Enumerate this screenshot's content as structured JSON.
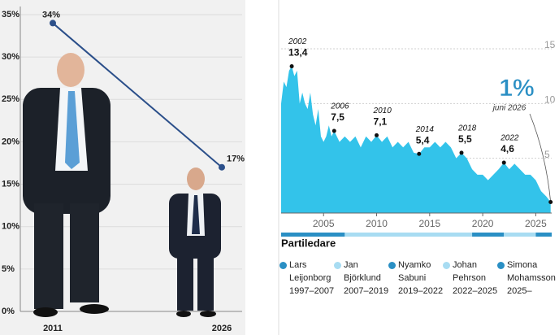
{
  "chart_data": [
    {
      "type": "line",
      "categories": [
        "2011",
        "2026"
      ],
      "values": [
        34,
        17
      ],
      "value_labels": [
        "34%",
        "17%"
      ],
      "color": "#2b4f8a",
      "ylim": [
        0,
        35
      ],
      "yticks": [
        {
          "value": 0,
          "label": "0%"
        },
        {
          "value": 5,
          "label": "5%"
        },
        {
          "value": 10,
          "label": "10%"
        },
        {
          "value": 15,
          "label": "15%"
        },
        {
          "value": 20,
          "label": "20%"
        },
        {
          "value": 25,
          "label": "25%"
        },
        {
          "value": 30,
          "label": "30%"
        },
        {
          "value": 35,
          "label": "35%"
        }
      ],
      "grid": true
    },
    {
      "type": "area",
      "color": "#33c3ea",
      "x": [
        2001.0,
        2001.25,
        2001.5,
        2001.75,
        2002.0,
        2002.25,
        2002.5,
        2002.75,
        2003.0,
        2003.25,
        2003.5,
        2003.75,
        2004.0,
        2004.25,
        2004.5,
        2004.75,
        2005.0,
        2005.25,
        2005.5,
        2005.75,
        2006.0,
        2006.5,
        2007.0,
        2007.5,
        2008.0,
        2008.5,
        2009.0,
        2009.5,
        2010.0,
        2010.5,
        2011.0,
        2011.5,
        2012.0,
        2012.5,
        2013.0,
        2013.5,
        2014.0,
        2014.5,
        2015.0,
        2015.5,
        2016.0,
        2016.5,
        2017.0,
        2017.5,
        2018.0,
        2018.5,
        2019.0,
        2019.5,
        2020.0,
        2020.5,
        2021.0,
        2021.5,
        2022.0,
        2022.5,
        2023.0,
        2023.5,
        2024.0,
        2024.5,
        2025.0,
        2025.5,
        2026.0,
        2026.4
      ],
      "values": [
        10,
        12,
        11.5,
        13,
        13.4,
        12.5,
        13,
        10,
        11,
        10,
        9.5,
        11,
        9,
        8,
        9.5,
        7,
        6.5,
        7,
        8,
        7,
        7.5,
        6.5,
        7,
        6.5,
        7,
        6,
        7,
        6.5,
        7.1,
        6.5,
        7,
        6,
        6.5,
        6,
        6.5,
        5.5,
        5.4,
        6,
        6,
        6.5,
        6,
        6.5,
        6,
        5,
        5.5,
        5,
        4,
        3.5,
        3.5,
        3,
        3.5,
        4,
        4.6,
        4,
        4.5,
        4,
        3.5,
        3.5,
        3,
        2,
        1.5,
        1
      ],
      "xlim": [
        2001,
        2026.5
      ],
      "xticks": [
        2005,
        2010,
        2015,
        2020,
        2025
      ],
      "ylim": [
        0,
        15
      ],
      "yticks": [
        5,
        10,
        15
      ],
      "annotations": [
        {
          "x": 2002,
          "year": "2002",
          "value": 13.4,
          "label": "13,4"
        },
        {
          "x": 2006,
          "year": "2006",
          "value": 7.5,
          "label": "7,5"
        },
        {
          "x": 2010,
          "year": "2010",
          "value": 7.1,
          "label": "7,1"
        },
        {
          "x": 2014,
          "year": "2014",
          "value": 5.4,
          "label": "5,4"
        },
        {
          "x": 2018,
          "year": "2018",
          "value": 5.5,
          "label": "5,5"
        },
        {
          "x": 2022,
          "year": "2022",
          "value": 4.6,
          "label": "4,6"
        }
      ],
      "highlight": {
        "x": 2026.4,
        "value": 1,
        "label": "1%",
        "note": "juni 2026"
      },
      "legend_title": "Partiledare",
      "leaders": [
        {
          "name": "Lars Leijonborg",
          "period": "1997–2007",
          "start": 1997,
          "end": 2007,
          "color": "#2a8fc4"
        },
        {
          "name": "Jan Björklund",
          "period": "2007–2019",
          "start": 2007,
          "end": 2019,
          "color": "#a8dcf2"
        },
        {
          "name": "Nyamko Sabuni",
          "period": "2019–2022",
          "start": 2019,
          "end": 2022,
          "color": "#2a8fc4"
        },
        {
          "name": "Johan Pehrson",
          "period": "2022–2025",
          "start": 2022,
          "end": 2025,
          "color": "#a8dcf2"
        },
        {
          "name": "Simona Mohamsson",
          "period": "2025–",
          "start": 2025,
          "end": null,
          "color": "#2a8fc4"
        }
      ]
    }
  ]
}
